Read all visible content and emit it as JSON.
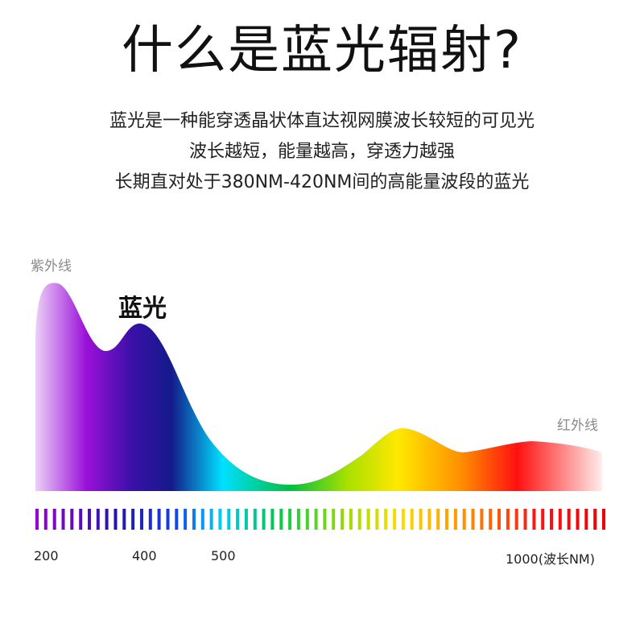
{
  "header": {
    "title": "什么是蓝光辐射?",
    "lines": [
      "蓝光是一种能穿透晶状体直达视网膜波长较短的可见光",
      "波长越短，能量越高，穿透力越强",
      "长期直对处于380NM-420NM间的高能量波段的蓝光"
    ]
  },
  "chart_data": {
    "type": "area",
    "title": "",
    "xlabel": "",
    "ylabel": "",
    "annotations": [
      {
        "text": "紫外线",
        "role": "region-label-left"
      },
      {
        "text": "蓝光",
        "role": "peak-label"
      },
      {
        "text": "红外线",
        "role": "region-label-right"
      }
    ],
    "ticks": [
      {
        "label": "200",
        "value": 200
      },
      {
        "label": "400",
        "value": 400
      },
      {
        "label": "500",
        "value": 500
      },
      {
        "label": "1000(波长NM)",
        "value": 1000
      }
    ],
    "grid": false,
    "legend": "none",
    "colors": [
      "#e8c4f4",
      "#9000d0",
      "#1a1a8a",
      "#00d8ff",
      "#00c040",
      "#ffe000",
      "#ff1010",
      "#ffffff"
    ]
  }
}
